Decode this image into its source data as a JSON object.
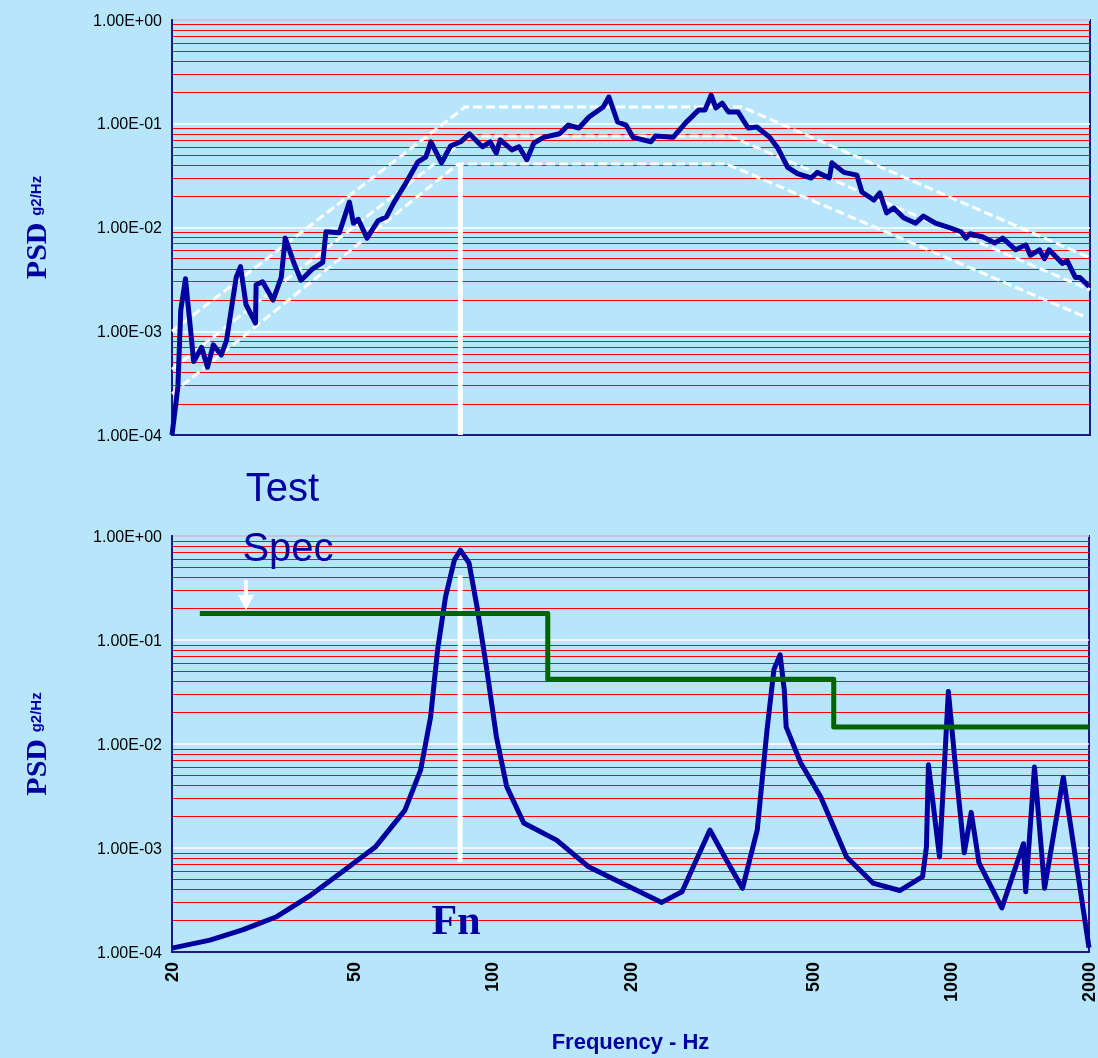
{
  "chart_data": [
    {
      "type": "line",
      "ylabel": "PSD g2/Hz",
      "log": "xy",
      "grid": "y",
      "tick_labels": "y",
      "marker": "none",
      "line_style": "solid",
      "xlim": [
        20,
        2000
      ],
      "xticks": [
        20,
        50,
        100,
        200,
        500,
        1000,
        2000
      ],
      "ylim": [
        0.0001,
        1
      ],
      "yticks": [
        {
          "value": 1,
          "label": "1.00E+00"
        },
        {
          "value": 0.1,
          "label": "1.00E-01"
        },
        {
          "value": 0.01,
          "label": "1.00E-02"
        },
        {
          "value": 0.001,
          "label": "1.00E-03"
        },
        {
          "value": 0.0001,
          "label": "1.00E-04"
        },
        {
          "value": 0.0002,
          "label": null
        },
        {
          "value": 0.0003,
          "label": null
        },
        {
          "value": 0.0004,
          "label": null
        },
        {
          "value": 0.0005,
          "label": null
        },
        {
          "value": 0.0006,
          "label": null
        },
        {
          "value": 0.0007,
          "label": null
        },
        {
          "value": 0.0008,
          "label": null
        },
        {
          "value": 0.0009,
          "label": null
        },
        {
          "value": 0.002,
          "label": null
        },
        {
          "value": 0.003,
          "label": null
        },
        {
          "value": 0.004,
          "label": null
        },
        {
          "value": 0.005,
          "label": null
        },
        {
          "value": 0.006,
          "label": null
        },
        {
          "value": 0.007,
          "label": null
        },
        {
          "value": 0.008,
          "label": null
        },
        {
          "value": 0.009,
          "label": null
        },
        {
          "value": 0.02,
          "label": null
        },
        {
          "value": 0.03,
          "label": null
        },
        {
          "value": 0.04,
          "label": null
        },
        {
          "value": 0.05,
          "label": null
        },
        {
          "value": 0.06,
          "label": null
        },
        {
          "value": 0.07,
          "label": null
        },
        {
          "value": 0.08,
          "label": null
        },
        {
          "value": 0.09,
          "label": null
        },
        {
          "value": 0.2,
          "label": null
        },
        {
          "value": 0.3,
          "label": null
        },
        {
          "value": 0.4,
          "label": null
        },
        {
          "value": 0.5,
          "label": null
        },
        {
          "value": 0.6,
          "label": null
        },
        {
          "value": 0.7,
          "label": null
        },
        {
          "value": 0.8,
          "label": null
        },
        {
          "value": 0.9,
          "label": null
        }
      ],
      "series": [
        {
          "color": "#ffffff",
          "line_style": "dashed",
          "x": [
            20,
            87,
            349,
            2000
          ],
          "values": [
            0.001,
            0.145,
            0.145,
            0.0051
          ]
        },
        {
          "color": "#ffffff",
          "line_style": "dashed",
          "x": [
            20,
            89,
            329,
            2000
          ],
          "values": [
            0.00043,
            0.076,
            0.076,
            0.0025
          ]
        },
        {
          "color": "#ffffff",
          "line_style": "dashed",
          "x": [
            20,
            84,
            323,
            1956
          ],
          "values": [
            0.00025,
            0.041,
            0.041,
            0.00137
          ]
        },
        {
          "color": "#ffffff",
          "x": [
            85,
            85
          ],
          "values": [
            0.041,
            0.0001
          ]
        },
        {
          "color": "#00009f",
          "x": [
            20,
            20.6,
            20.9,
            21.4,
            22.3,
            23.2,
            23.9,
            24.6,
            25.6,
            26.3,
            27.6,
            28.2,
            29,
            30.4,
            30.5,
            31.5,
            33.2,
            34.6,
            35.3,
            36.9,
            38.2,
            40.5,
            42.6,
            43.3,
            46.3,
            48.7,
            49.7,
            50.9,
            53.2,
            56.2,
            58.6,
            60.7,
            64.7,
            68.7,
            71.5,
            73.3,
            77.3,
            80.9,
            85.1,
            88.9,
            94.9,
            98.7,
            101.7,
            103.8,
            110,
            114,
            118.6,
            122.8,
            129,
            139.7,
            146,
            154,
            162,
            174,
            179,
            187,
            195,
            202,
            221,
            226,
            247,
            263,
            281,
            290,
            299,
            306,
            316,
            326,
            342,
            360,
            376,
            401,
            418,
            439,
            461,
            494,
            509,
            541,
            548,
            582,
            621,
            637,
            676,
            697,
            721,
            747,
            785,
            834,
            867,
            921,
            991,
            1047,
            1074,
            1096,
            1169,
            1241,
            1291,
            1378,
            1449,
            1483,
            1552,
            1592,
            1629,
            1742,
            1783,
            1858,
            1901,
            1991
          ],
          "values": [
            0.0001,
            0.00029,
            0.0016,
            0.0032,
            0.00051,
            0.0007,
            0.00045,
            0.00074,
            0.00059,
            0.00082,
            0.0033,
            0.0042,
            0.0018,
            0.0012,
            0.0028,
            0.003,
            0.002,
            0.0033,
            0.0079,
            0.0045,
            0.0031,
            0.004,
            0.0046,
            0.0091,
            0.0089,
            0.0176,
            0.011,
            0.012,
            0.0079,
            0.0116,
            0.0126,
            0.017,
            0.027,
            0.043,
            0.048,
            0.067,
            0.042,
            0.061,
            0.067,
            0.08,
            0.06,
            0.067,
            0.052,
            0.07,
            0.056,
            0.06,
            0.045,
            0.065,
            0.074,
            0.08,
            0.097,
            0.091,
            0.116,
            0.145,
            0.181,
            0.104,
            0.097,
            0.074,
            0.067,
            0.076,
            0.074,
            0.102,
            0.136,
            0.136,
            0.189,
            0.142,
            0.158,
            0.13,
            0.13,
            0.091,
            0.093,
            0.074,
            0.058,
            0.038,
            0.033,
            0.03,
            0.034,
            0.03,
            0.042,
            0.034,
            0.032,
            0.022,
            0.0184,
            0.0215,
            0.0138,
            0.0154,
            0.0124,
            0.011,
            0.0129,
            0.011,
            0.0099,
            0.0091,
            0.0079,
            0.0087,
            0.0081,
            0.0071,
            0.0079,
            0.0061,
            0.0068,
            0.0054,
            0.0061,
            0.005,
            0.0061,
            0.0045,
            0.0048,
            0.0033,
            0.0033,
            0.0027
          ]
        }
      ]
    },
    {
      "type": "line",
      "xlabel": "Frequency - Hz",
      "ylabel": "PSD g2/Hz",
      "log": "xy",
      "grid": "y",
      "marker": "none",
      "line_style": "solid",
      "xlim": [
        20,
        2000
      ],
      "xticks": [
        20,
        50,
        100,
        200,
        500,
        1000,
        2000
      ],
      "ylim": [
        0.0001,
        1
      ],
      "yticks": [
        {
          "value": 1,
          "label": "1.00E+00"
        },
        {
          "value": 0.1,
          "label": "1.00E-01"
        },
        {
          "value": 0.01,
          "label": "1.00E-02"
        },
        {
          "value": 0.001,
          "label": "1.00E-03"
        },
        {
          "value": 0.0001,
          "label": "1.00E-04"
        },
        {
          "value": 0.0002,
          "label": null
        },
        {
          "value": 0.0003,
          "label": null
        },
        {
          "value": 0.0004,
          "label": null
        },
        {
          "value": 0.0005,
          "label": null
        },
        {
          "value": 0.0006,
          "label": null
        },
        {
          "value": 0.0007,
          "label": null
        },
        {
          "value": 0.0008,
          "label": null
        },
        {
          "value": 0.0009,
          "label": null
        },
        {
          "value": 0.002,
          "label": null
        },
        {
          "value": 0.003,
          "label": null
        },
        {
          "value": 0.004,
          "label": null
        },
        {
          "value": 0.005,
          "label": null
        },
        {
          "value": 0.006,
          "label": null
        },
        {
          "value": 0.007,
          "label": null
        },
        {
          "value": 0.008,
          "label": null
        },
        {
          "value": 0.009,
          "label": null
        },
        {
          "value": 0.02,
          "label": null
        },
        {
          "value": 0.03,
          "label": null
        },
        {
          "value": 0.04,
          "label": null
        },
        {
          "value": 0.05,
          "label": null
        },
        {
          "value": 0.06,
          "label": null
        },
        {
          "value": 0.07,
          "label": null
        },
        {
          "value": 0.08,
          "label": null
        },
        {
          "value": 0.09,
          "label": null
        },
        {
          "value": 0.2,
          "label": null
        },
        {
          "value": 0.3,
          "label": null
        },
        {
          "value": 0.4,
          "label": null
        },
        {
          "value": 0.5,
          "label": null
        },
        {
          "value": 0.6,
          "label": null
        },
        {
          "value": 0.7,
          "label": null
        },
        {
          "value": 0.8,
          "label": null
        },
        {
          "value": 0.9,
          "label": null
        }
      ],
      "annotations": [
        {
          "text": "Test Spec",
          "x": 29,
          "y": 0.18
        },
        "Fn"
      ],
      "series": [
        {
          "color": "#ffffff",
          "x": [
            85,
            85
          ],
          "values": [
            0.42,
            0.00073
          ]
        },
        {
          "color": "#00009f",
          "x": [
            20,
            24.2,
            28.5,
            33.7,
            39.7,
            46.8,
            55.5,
            64.4,
            69.7,
            73.3,
            75.9,
            79,
            82.6,
            85.1,
            88.9,
            92.5,
            97.2,
            102,
            107.4,
            117,
            138,
            162,
            186,
            234,
            259,
            298,
            321,
            351,
            378,
            397,
            411,
            424,
            433,
            437,
            470,
            520,
            592,
            676,
            773,
            867,
            884,
            893,
            944,
            987,
            1021,
            1069,
            1107,
            1151,
            1291,
            1439,
            1455,
            1521,
            1600,
            1758,
            2000
          ],
          "values": [
            0.000109,
            0.00013,
            0.000163,
            0.000217,
            0.00034,
            0.00058,
            0.00102,
            0.0023,
            0.0056,
            0.0182,
            0.08,
            0.26,
            0.59,
            0.73,
            0.55,
            0.21,
            0.052,
            0.0117,
            0.0039,
            0.00174,
            0.00119,
            0.00066,
            0.00049,
            0.0003,
            0.00038,
            0.00149,
            0.00082,
            0.00041,
            0.00149,
            0.0136,
            0.052,
            0.072,
            0.033,
            0.0146,
            0.0066,
            0.0031,
            0.00082,
            0.00046,
            0.00039,
            0.00053,
            0.00102,
            0.0063,
            0.00082,
            0.032,
            0.0066,
            0.0009,
            0.0022,
            0.00072,
            0.000265,
            0.0011,
            0.00038,
            0.006,
            0.00041,
            0.0048,
            0.00011
          ]
        },
        {
          "type": "step",
          "color": "#006400",
          "x": [
            23,
            132,
            555,
            2000
          ],
          "values": [
            0.18,
            0.042,
            0.0146,
            0.0146
          ]
        }
      ]
    }
  ]
}
